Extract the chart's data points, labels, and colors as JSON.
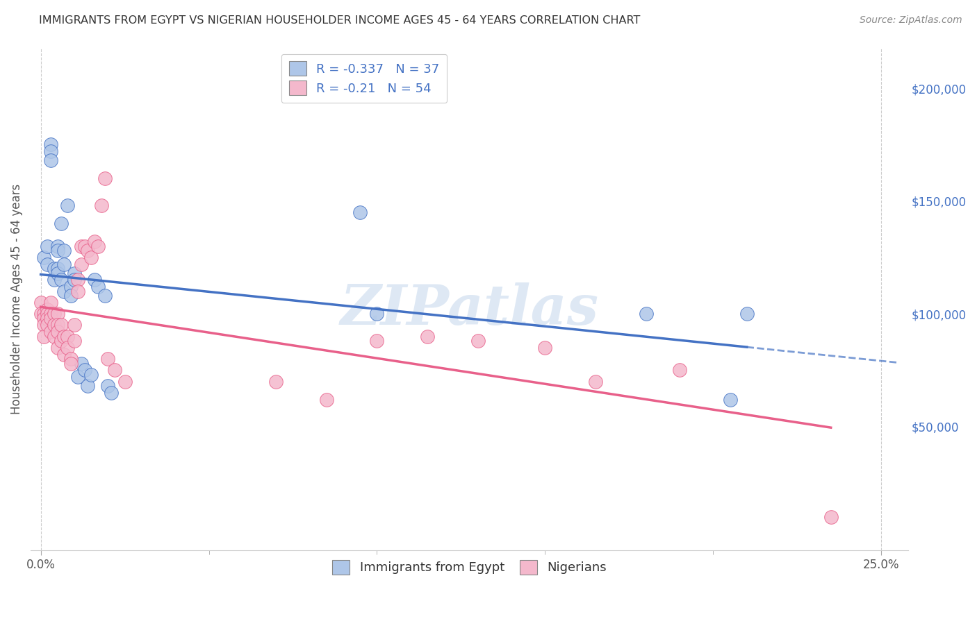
{
  "title": "IMMIGRANTS FROM EGYPT VS NIGERIAN HOUSEHOLDER INCOME AGES 45 - 64 YEARS CORRELATION CHART",
  "source": "Source: ZipAtlas.com",
  "ylabel": "Householder Income Ages 45 - 64 years",
  "ytick_labels": [
    "$50,000",
    "$100,000",
    "$150,000",
    "$200,000"
  ],
  "ytick_vals": [
    50000,
    100000,
    150000,
    200000
  ],
  "xlim": [
    -0.003,
    0.258
  ],
  "ylim": [
    -5000,
    218000
  ],
  "legend_labels": [
    "Immigrants from Egypt",
    "Nigerians"
  ],
  "R_egypt": -0.337,
  "N_egypt": 37,
  "R_nigeria": -0.21,
  "N_nigeria": 54,
  "color_egypt": "#aec6e8",
  "color_nigeria": "#f4b8cc",
  "line_color_egypt": "#4472c4",
  "line_color_nigeria": "#e8608a",
  "watermark": "ZIPatlas",
  "egypt_x": [
    0.001,
    0.002,
    0.002,
    0.003,
    0.003,
    0.003,
    0.004,
    0.004,
    0.005,
    0.005,
    0.005,
    0.005,
    0.006,
    0.006,
    0.007,
    0.007,
    0.007,
    0.008,
    0.009,
    0.009,
    0.01,
    0.01,
    0.011,
    0.012,
    0.013,
    0.014,
    0.015,
    0.016,
    0.017,
    0.019,
    0.02,
    0.021,
    0.095,
    0.1,
    0.18,
    0.205,
    0.21
  ],
  "egypt_y": [
    125000,
    130000,
    122000,
    175000,
    172000,
    168000,
    120000,
    115000,
    130000,
    128000,
    120000,
    118000,
    140000,
    115000,
    110000,
    128000,
    122000,
    148000,
    112000,
    108000,
    118000,
    115000,
    72000,
    78000,
    75000,
    68000,
    73000,
    115000,
    112000,
    108000,
    68000,
    65000,
    145000,
    100000,
    100000,
    62000,
    100000
  ],
  "nigeria_x": [
    0.0,
    0.0,
    0.001,
    0.001,
    0.001,
    0.001,
    0.002,
    0.002,
    0.002,
    0.002,
    0.003,
    0.003,
    0.003,
    0.003,
    0.004,
    0.004,
    0.004,
    0.005,
    0.005,
    0.005,
    0.005,
    0.006,
    0.006,
    0.007,
    0.007,
    0.008,
    0.008,
    0.009,
    0.009,
    0.01,
    0.01,
    0.011,
    0.011,
    0.012,
    0.012,
    0.013,
    0.014,
    0.015,
    0.016,
    0.017,
    0.018,
    0.019,
    0.02,
    0.022,
    0.025,
    0.07,
    0.085,
    0.1,
    0.115,
    0.13,
    0.15,
    0.165,
    0.19,
    0.235
  ],
  "nigeria_y": [
    105000,
    100000,
    100000,
    98000,
    95000,
    90000,
    102000,
    100000,
    98000,
    95000,
    105000,
    100000,
    98000,
    92000,
    100000,
    95000,
    90000,
    100000,
    95000,
    92000,
    85000,
    95000,
    88000,
    90000,
    82000,
    90000,
    85000,
    80000,
    78000,
    95000,
    88000,
    115000,
    110000,
    130000,
    122000,
    130000,
    128000,
    125000,
    132000,
    130000,
    148000,
    160000,
    80000,
    75000,
    70000,
    70000,
    62000,
    88000,
    90000,
    88000,
    85000,
    70000,
    75000,
    10000
  ]
}
